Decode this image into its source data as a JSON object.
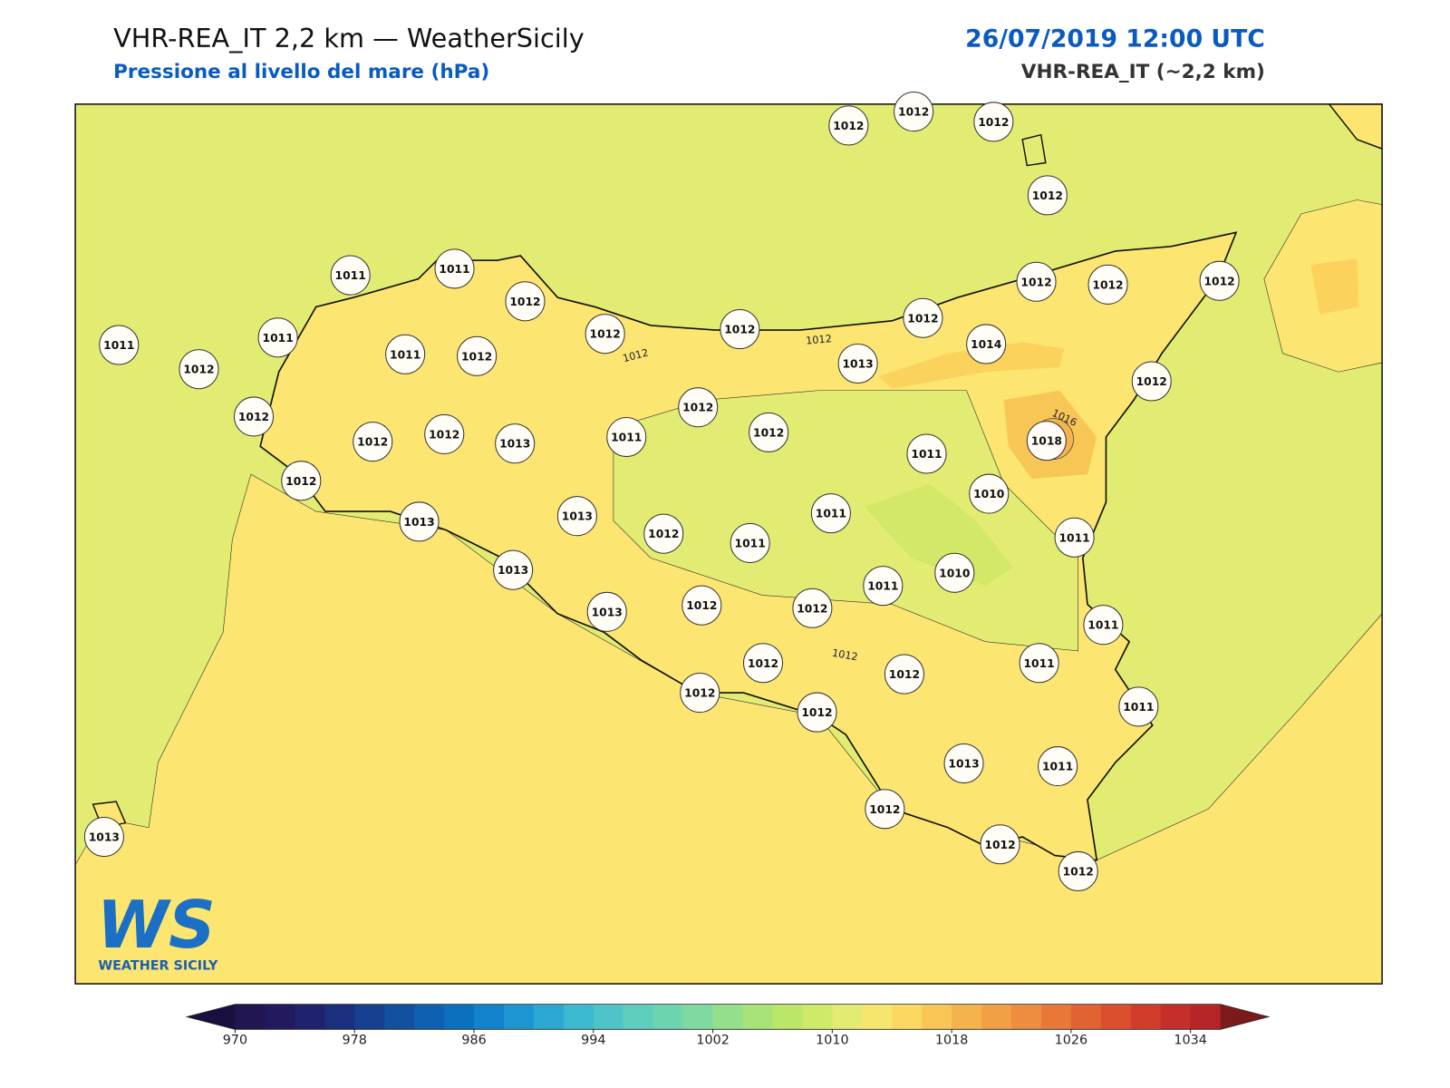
{
  "header": {
    "title": "VHR-REA_IT 2,2 km — WeatherSicily",
    "subtitle": "Pressione al livello del mare (hPa)",
    "datetime": "26/07/2019 12:00 UTC",
    "model": "VHR-REA_IT (~2,2 km)"
  },
  "stations": {
    "values": [
      1012,
      1012,
      1012,
      1012,
      1011,
      1011,
      1012,
      1011,
      1012,
      1011,
      1011,
      1012,
      1012,
      1012,
      1012,
      1012,
      1012,
      1012,
      1014,
      1013,
      1012,
      1012,
      1012,
      1012,
      1013,
      1011,
      1012,
      1012,
      1011,
      1018,
      1012,
      1010,
      1013,
      1013,
      1012,
      1011,
      1011,
      1011,
      1013,
      1010,
      1011,
      1013,
      1012,
      1012,
      1011,
      1012,
      1012,
      1011,
      1012,
      1012,
      1011,
      1013,
      1011,
      1013,
      1012,
      1012,
      1012
    ]
  },
  "contour_labels": [
    "1012",
    "1012",
    "1012",
    "1016"
  ],
  "colorbar": {
    "range": [
      970,
      1036
    ],
    "ticks": [
      970,
      978,
      986,
      994,
      1002,
      1010,
      1018,
      1026,
      1034
    ],
    "colors": [
      "#211650",
      "#221a5e",
      "#1f236e",
      "#1a307f",
      "#15408f",
      "#1250a0",
      "#0f60b0",
      "#0c70c0",
      "#1282cc",
      "#1d95d0",
      "#2aa8d2",
      "#3cb8d0",
      "#4fc4c8",
      "#5fcdbd",
      "#6dd4b0",
      "#80daa0",
      "#93df8c",
      "#a7e378",
      "#bbe768",
      "#cfea68",
      "#e2ec72",
      "#f6e66e",
      "#fbd860",
      "#f8c655",
      "#f4b34d",
      "#f1a046",
      "#ee8c3f",
      "#e97838",
      "#e36232",
      "#db4e2e",
      "#d13d2b",
      "#c52f29",
      "#b52426"
    ],
    "under_color": "#1a1040",
    "over_color": "#7a1a1a"
  },
  "logo": {
    "mark": "WS",
    "text": "WEATHER SICILY"
  }
}
